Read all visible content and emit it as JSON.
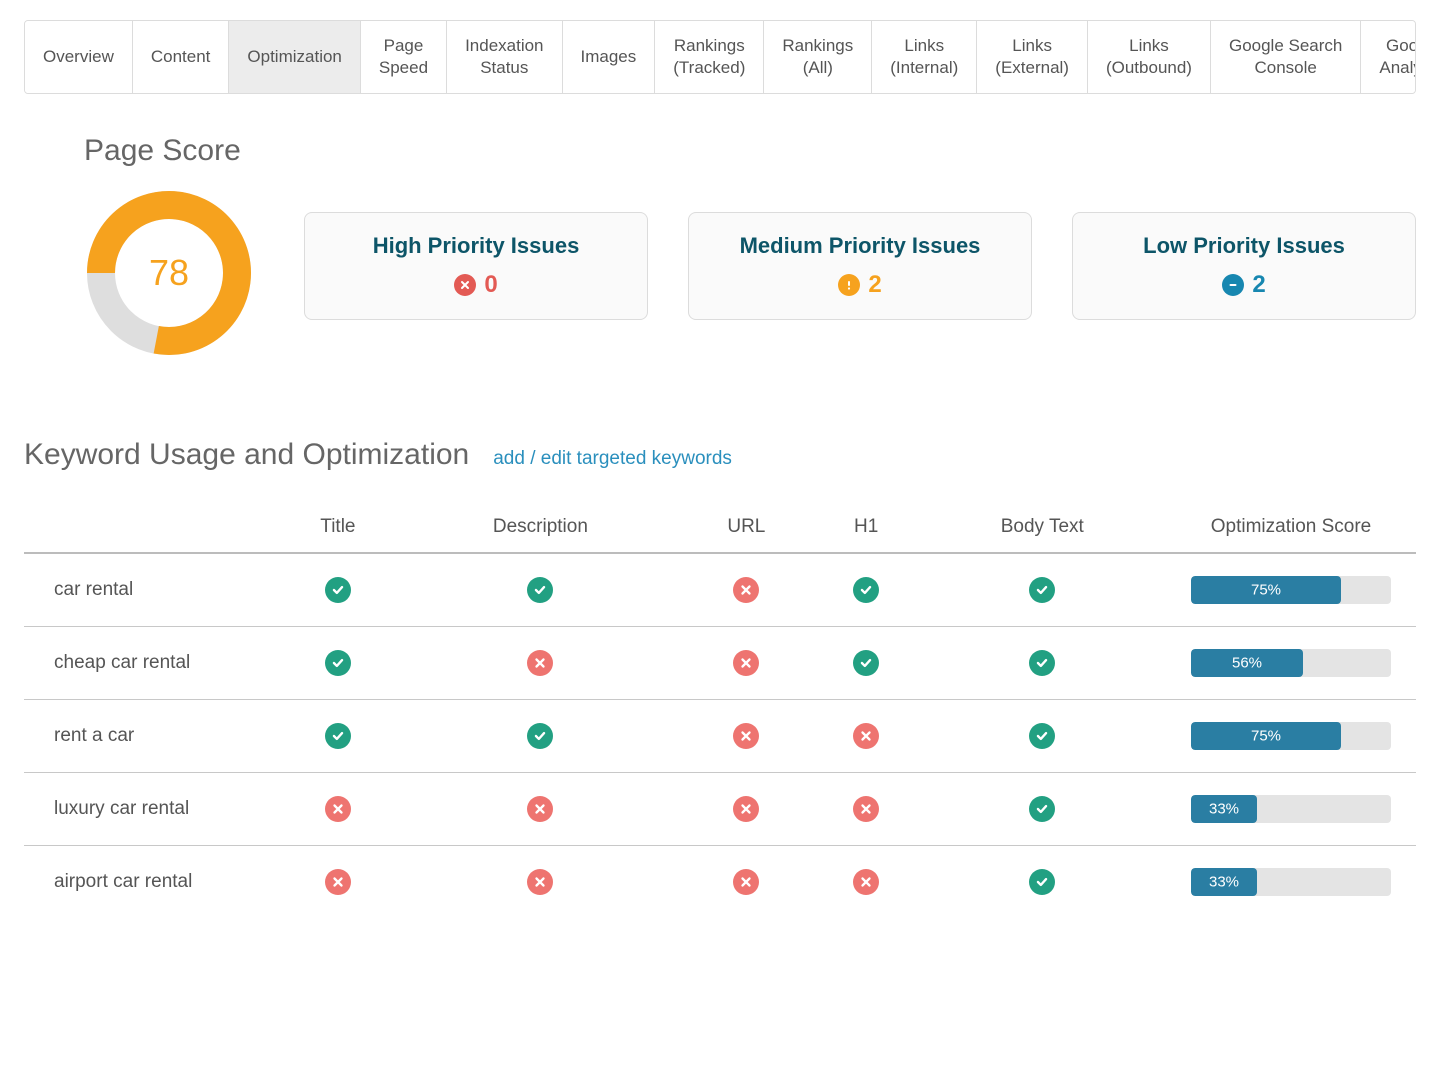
{
  "colors": {
    "donut_fg": "#f6a21e",
    "donut_bg": "#dedede",
    "score_text": "#f6a21e",
    "card_title": "#0d5568",
    "high_icon": "#e35a54",
    "medium_icon": "#f6a21e",
    "low_icon": "#1787b0",
    "check_bg": "#22a082",
    "cross_bg": "#ee7470",
    "progress_fill": "#2a7ea3",
    "progress_bg": "#e4e4e4",
    "link": "#2a8fbd"
  },
  "tabs": [
    {
      "label": "Overview",
      "active": false
    },
    {
      "label": "Content",
      "active": false
    },
    {
      "label": "Optimization",
      "active": true
    },
    {
      "label": "Page Speed",
      "active": false
    },
    {
      "label": "Indexation Status",
      "active": false
    },
    {
      "label": "Images",
      "active": false
    },
    {
      "label": "Rankings (Tracked)",
      "active": false
    },
    {
      "label": "Rankings (All)",
      "active": false
    },
    {
      "label": "Links (Internal)",
      "active": false
    },
    {
      "label": "Links (External)",
      "active": false
    },
    {
      "label": "Links (Outbound)",
      "active": false
    },
    {
      "label": "Google Search Console",
      "active": false
    },
    {
      "label": "Google Analytics",
      "active": false
    }
  ],
  "page_score": {
    "title": "Page Score",
    "value": 78,
    "max": 100
  },
  "issue_cards": [
    {
      "title": "High Priority Issues",
      "count": 0,
      "icon": "x",
      "color_key": "high_icon"
    },
    {
      "title": "Medium Priority Issues",
      "count": 2,
      "icon": "exclaim",
      "color_key": "medium_icon"
    },
    {
      "title": "Low Priority Issues",
      "count": 2,
      "icon": "minus",
      "color_key": "low_icon"
    }
  ],
  "keyword_section": {
    "title": "Keyword Usage and Optimization",
    "link_text": "add / edit targeted keywords",
    "columns": [
      "",
      "Title",
      "Description",
      "URL",
      "H1",
      "Body Text",
      "Optimization Score"
    ],
    "rows": [
      {
        "keyword": "car rental",
        "cells": [
          "check",
          "check",
          "cross",
          "check",
          "check"
        ],
        "score": 75
      },
      {
        "keyword": "cheap car rental",
        "cells": [
          "check",
          "cross",
          "cross",
          "check",
          "check"
        ],
        "score": 56
      },
      {
        "keyword": "rent a car",
        "cells": [
          "check",
          "check",
          "cross",
          "cross",
          "check"
        ],
        "score": 75
      },
      {
        "keyword": "luxury car rental",
        "cells": [
          "cross",
          "cross",
          "cross",
          "cross",
          "check"
        ],
        "score": 33
      },
      {
        "keyword": "airport car rental",
        "cells": [
          "cross",
          "cross",
          "cross",
          "cross",
          "check"
        ],
        "score": 33
      }
    ]
  }
}
